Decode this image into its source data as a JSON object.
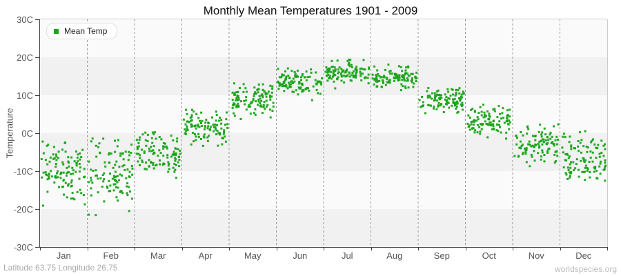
{
  "title": "Monthly Mean Temperatures 1901 - 2009",
  "legend": {
    "label": "Mean Temp"
  },
  "y_axis": {
    "title": "Temperature",
    "tick_labels": [
      "30C",
      "20C",
      "10C",
      "0C",
      "-10C",
      "-20C",
      "-30C"
    ]
  },
  "x_axis": {
    "tick_labels": [
      "Jan",
      "Feb",
      "Mar",
      "Apr",
      "May",
      "Jun",
      "Jul",
      "Aug",
      "Sep",
      "Oct",
      "Nov",
      "Dec"
    ]
  },
  "footer": {
    "left": "Latitude 63.75 Longitude 26.75",
    "right": "worldspecies.org"
  },
  "colors": {
    "point": "#18a318",
    "band_light": "#fafafa",
    "band_dark": "#f1f1f1",
    "gridline": "#999999",
    "axis": "#444444",
    "plot_border": "#cccccc",
    "tick_text": "#555555",
    "title_text": "#111111"
  },
  "chart_data": {
    "type": "scatter",
    "title": "Monthly Mean Temperatures 1901 - 2009",
    "xlabel": "",
    "ylabel": "Temperature",
    "ylim": [
      -30,
      30
    ],
    "ytick_step": 10,
    "categories": [
      "Jan",
      "Feb",
      "Mar",
      "Apr",
      "May",
      "Jun",
      "Jul",
      "Aug",
      "Sep",
      "Oct",
      "Nov",
      "Dec"
    ],
    "grid": "vertical-dashed",
    "legend_position": "top-left",
    "seed": 42,
    "series": [
      {
        "name": "Mean Temp",
        "color": "#18a318",
        "points_per_month": 109,
        "monthly_stats": [
          {
            "month": "Jan",
            "mean": -9.5,
            "std": 4.2,
            "min": -21.8,
            "max": -1.5
          },
          {
            "month": "Feb",
            "mean": -10.2,
            "std": 4.4,
            "min": -22.0,
            "max": -1.2
          },
          {
            "month": "Mar",
            "mean": -5.5,
            "std": 2.9,
            "min": -12.7,
            "max": 1.1
          },
          {
            "month": "Apr",
            "mean": 1.5,
            "std": 2.1,
            "min": -4.4,
            "max": 7.5
          },
          {
            "month": "May",
            "mean": 8.5,
            "std": 2.1,
            "min": 2.7,
            "max": 14.2
          },
          {
            "month": "Jun",
            "mean": 13.3,
            "std": 1.7,
            "min": 8.4,
            "max": 17.8
          },
          {
            "month": "Jul",
            "mean": 15.8,
            "std": 1.6,
            "min": 11.5,
            "max": 20.0
          },
          {
            "month": "Aug",
            "mean": 14.4,
            "std": 1.5,
            "min": 11.3,
            "max": 18.4
          },
          {
            "month": "Sep",
            "mean": 9.1,
            "std": 1.7,
            "min": 3.3,
            "max": 12.7
          },
          {
            "month": "Oct",
            "mean": 3.1,
            "std": 2.0,
            "min": -3.1,
            "max": 7.5
          },
          {
            "month": "Nov",
            "mean": -2.7,
            "std": 2.5,
            "min": -13.6,
            "max": 2.7
          },
          {
            "month": "Dec",
            "mean": -7.1,
            "std": 3.8,
            "min": -20.9,
            "max": 0.9
          }
        ]
      }
    ]
  }
}
